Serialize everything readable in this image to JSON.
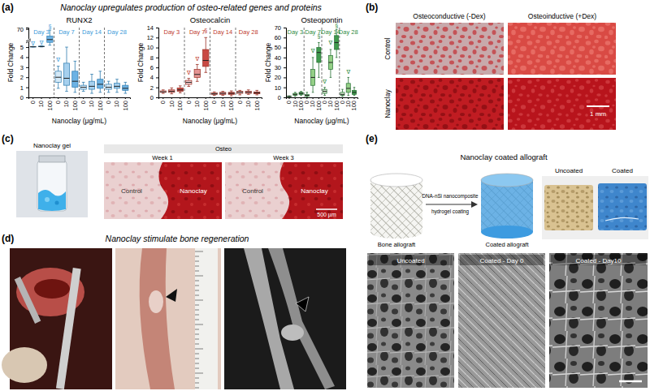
{
  "chart_data": [
    {
      "type": "box",
      "title": "RUNX2",
      "x_label": "Nanoclay (μg/mL)",
      "y_label": "Fold Change",
      "categories": [
        "0",
        "10",
        "100"
      ],
      "ylim": [
        0,
        75
      ],
      "yticks": [
        0,
        1,
        2,
        3,
        4,
        5,
        70
      ],
      "series": [
        {
          "name": "Day 3",
          "color": "#3a9ad9",
          "colors": [
            "#d4e9f7",
            "#a6d0ee",
            "#6cb2e4"
          ],
          "values": [
            {
              "min": 5.4,
              "q1": 5.8,
              "median": 6.2,
              "q3": 6.8,
              "max": 7.4
            },
            {
              "min": 5.6,
              "q1": 6.2,
              "median": 7,
              "q3": 8.5,
              "max": 10
            },
            {
              "min": 12,
              "q1": 22,
              "median": 32,
              "q3": 45,
              "max": 66
            }
          ]
        },
        {
          "name": "Day 7",
          "color": "#3a9ad9",
          "colors": [
            "#d4e9f7",
            "#a6d0ee",
            "#6cb2e4"
          ],
          "values": [
            {
              "min": 0.9,
              "q1": 1.5,
              "median": 2.0,
              "q3": 2.6,
              "max": 3.1
            },
            {
              "min": 0.6,
              "q1": 1.2,
              "median": 1.9,
              "q3": 3.4,
              "max": 5.0
            },
            {
              "min": 0.5,
              "q1": 1.0,
              "median": 1.6,
              "q3": 2.6,
              "max": 3.6
            }
          ]
        },
        {
          "name": "Day 14",
          "color": "#3a9ad9",
          "colors": [
            "#d4e9f7",
            "#a6d0ee",
            "#6cb2e4"
          ],
          "values": [
            {
              "min": 0.6,
              "q1": 0.8,
              "median": 1.0,
              "q3": 1.2,
              "max": 1.5
            },
            {
              "min": 0.4,
              "q1": 0.8,
              "median": 1.1,
              "q3": 1.6,
              "max": 2.3
            },
            {
              "min": 0.5,
              "q1": 0.9,
              "median": 1.3,
              "q3": 1.8,
              "max": 2.6
            }
          ]
        },
        {
          "name": "Day 28",
          "color": "#3a9ad9",
          "colors": [
            "#d4e9f7",
            "#a6d0ee",
            "#6cb2e4"
          ],
          "values": [
            {
              "min": 0.5,
              "q1": 0.8,
              "median": 1.0,
              "q3": 1.3,
              "max": 1.6
            },
            {
              "min": 0.5,
              "q1": 0.9,
              "median": 1.1,
              "q3": 1.4,
              "max": 1.8
            },
            {
              "min": 0.4,
              "q1": 0.7,
              "median": 0.9,
              "q3": 1.2,
              "max": 1.5
            }
          ]
        }
      ],
      "annotations": [
        {
          "text": "∇",
          "series": 0,
          "index": 0,
          "y": 9
        },
        {
          "text": "∇",
          "series": 0,
          "index": 1,
          "y": 12
        },
        {
          "text": "§",
          "series": 0,
          "index": 2,
          "y": 70
        },
        {
          "text": "∇",
          "series": 1,
          "index": 0,
          "y": 3.5
        }
      ]
    },
    {
      "type": "box",
      "title": "Osteocalcin",
      "x_label": "Nanoclay (μg/mL)",
      "y_label": "Fold Change",
      "categories": [
        "0",
        "10",
        "100"
      ],
      "ylim": [
        0,
        14
      ],
      "yticks": [
        0,
        2,
        4,
        6,
        8,
        10,
        12,
        14
      ],
      "series": [
        {
          "name": "Day 3",
          "color": "#c0392b",
          "colors": [
            "#f4d0d0",
            "#e49494",
            "#c94a44"
          ],
          "values": [
            {
              "min": 0.8,
              "q1": 1.0,
              "median": 1.1,
              "q3": 1.3,
              "max": 1.5
            },
            {
              "min": 0.7,
              "q1": 1.0,
              "median": 1.2,
              "q3": 1.5,
              "max": 1.9
            },
            {
              "min": 0.9,
              "q1": 1.2,
              "median": 1.5,
              "q3": 1.9,
              "max": 2.3
            }
          ]
        },
        {
          "name": "Day 7",
          "color": "#c0392b",
          "colors": [
            "#f4d0d0",
            "#e49494",
            "#c94a44"
          ],
          "values": [
            {
              "min": 2.2,
              "q1": 2.6,
              "median": 3.0,
              "q3": 3.4,
              "max": 3.8
            },
            {
              "min": 3.2,
              "q1": 4.0,
              "median": 4.6,
              "q3": 5.6,
              "max": 6.6
            },
            {
              "min": 5.0,
              "q1": 6.2,
              "median": 7.4,
              "q3": 9.6,
              "max": 12.0
            }
          ]
        },
        {
          "name": "Day 14",
          "color": "#c0392b",
          "colors": [
            "#f4d0d0",
            "#e49494",
            "#c94a44"
          ],
          "values": [
            {
              "min": 0.4,
              "q1": 0.6,
              "median": 0.7,
              "q3": 0.9,
              "max": 1.1
            },
            {
              "min": 0.4,
              "q1": 0.6,
              "median": 0.8,
              "q3": 1.0,
              "max": 1.2
            },
            {
              "min": 0.3,
              "q1": 0.6,
              "median": 0.8,
              "q3": 1.0,
              "max": 1.3
            }
          ]
        },
        {
          "name": "Day 28",
          "color": "#c0392b",
          "colors": [
            "#f4d0d0",
            "#e49494",
            "#c94a44"
          ],
          "values": [
            {
              "min": 0.5,
              "q1": 0.8,
              "median": 1.0,
              "q3": 1.2,
              "max": 1.4
            },
            {
              "min": 0.6,
              "q1": 0.8,
              "median": 1.0,
              "q3": 1.2,
              "max": 1.5
            },
            {
              "min": 0.5,
              "q1": 0.7,
              "median": 0.9,
              "q3": 1.1,
              "max": 1.4
            }
          ]
        }
      ],
      "annotations": [
        {
          "text": "∇",
          "series": 1,
          "index": 0,
          "y": 4.4
        },
        {
          "text": "∇",
          "series": 1,
          "index": 1,
          "y": 7.2
        },
        {
          "text": "§",
          "series": 1,
          "index": 2,
          "y": 12.8
        }
      ]
    },
    {
      "type": "box",
      "title": "Osteopontin",
      "x_label": "Nanoclay (μg/mL)",
      "y_label": "Fold Change",
      "categories": [
        "0",
        "10",
        "100"
      ],
      "ylim": [
        0,
        70
      ],
      "yticks": [
        0,
        10,
        20,
        30,
        40,
        50,
        60,
        70
      ],
      "series": [
        {
          "name": "Day 3",
          "color": "#2e8b3e",
          "colors": [
            "#d3ebcd",
            "#94cf86",
            "#3f9a4d"
          ],
          "values": [
            {
              "min": 0.5,
              "q1": 0.8,
              "median": 1,
              "q3": 1.2,
              "max": 1.5
            },
            {
              "min": 1,
              "q1": 2,
              "median": 3,
              "q3": 4,
              "max": 5
            },
            {
              "min": 2,
              "q1": 3,
              "median": 4,
              "q3": 5,
              "max": 6
            }
          ]
        },
        {
          "name": "Day 7",
          "color": "#2e8b3e",
          "colors": [
            "#d3ebcd",
            "#94cf86",
            "#3f9a4d"
          ],
          "values": [
            {
              "min": 0.5,
              "q1": 1,
              "median": 2,
              "q3": 3,
              "max": 5
            },
            {
              "min": 5,
              "q1": 12,
              "median": 20,
              "q3": 28,
              "max": 40
            },
            {
              "min": 20,
              "q1": 35,
              "median": 45,
              "q3": 50,
              "max": 55
            }
          ]
        },
        {
          "name": "Day 14",
          "color": "#2e8b3e",
          "colors": [
            "#d3ebcd",
            "#94cf86",
            "#3f9a4d"
          ],
          "values": [
            {
              "min": 2,
              "q1": 4,
              "median": 6,
              "q3": 8,
              "max": 10
            },
            {
              "min": 20,
              "q1": 28,
              "median": 35,
              "q3": 42,
              "max": 48
            },
            {
              "min": 40,
              "q1": 48,
              "median": 55,
              "q3": 62,
              "max": 68
            }
          ]
        },
        {
          "name": "Day 28",
          "color": "#2e8b3e",
          "colors": [
            "#d3ebcd",
            "#94cf86",
            "#3f9a4d"
          ],
          "values": [
            {
              "min": 1,
              "q1": 2,
              "median": 3,
              "q3": 5,
              "max": 8
            },
            {
              "min": 2,
              "q1": 5,
              "median": 9,
              "q3": 14,
              "max": 20
            },
            {
              "min": 2,
              "q1": 3,
              "median": 5,
              "q3": 7,
              "max": 10
            }
          ]
        }
      ],
      "annotations": [
        {
          "text": "∇",
          "series": 1,
          "index": 1,
          "y": 44
        },
        {
          "text": "§",
          "series": 1,
          "index": 2,
          "y": 59
        },
        {
          "text": "∇",
          "series": 2,
          "index": 0,
          "y": 13
        },
        {
          "text": "∇",
          "series": 2,
          "index": 1,
          "y": 52
        },
        {
          "text": "§",
          "series": 2,
          "index": 2,
          "y": 69.5
        },
        {
          "text": "∇",
          "series": 3,
          "index": 1,
          "y": 23
        }
      ]
    }
  ],
  "figure": {
    "panel_labels": [
      "(a)",
      "(b)",
      "(c)",
      "(d)",
      "(e)"
    ],
    "panel_a": {
      "title": "Nanoclay upregulates production of osteo-related genes and proteins"
    },
    "panel_b": {
      "columns": [
        "Osteoconductive (-Dex)",
        "Osteoinductive (+Dex)"
      ],
      "rows": [
        "Control",
        "Nanoclay"
      ],
      "scale_bar": "1 mm"
    },
    "panel_c": {
      "vial_caption": "Nanoclay gel",
      "header": "Osteo",
      "columns": [
        "Week 1",
        "Week 3"
      ],
      "labels": [
        "Control",
        "Nanoclay"
      ],
      "scale_bar": "500 µm"
    },
    "panel_d": {
      "title": "Nanoclay stimulate bone regeneration"
    },
    "panel_e": {
      "title": "Nanoclay coated allograft",
      "arrow_label": [
        "DNA-nSi nanocomposite",
        "hydrogel coating"
      ],
      "scaffolds": [
        "Bone allograft",
        "Coated allograft"
      ],
      "photos": [
        "Uncoated",
        "Coated"
      ],
      "sem": [
        "Uncoated",
        "Coated - Day 0",
        "Coated - Day10"
      ]
    }
  }
}
